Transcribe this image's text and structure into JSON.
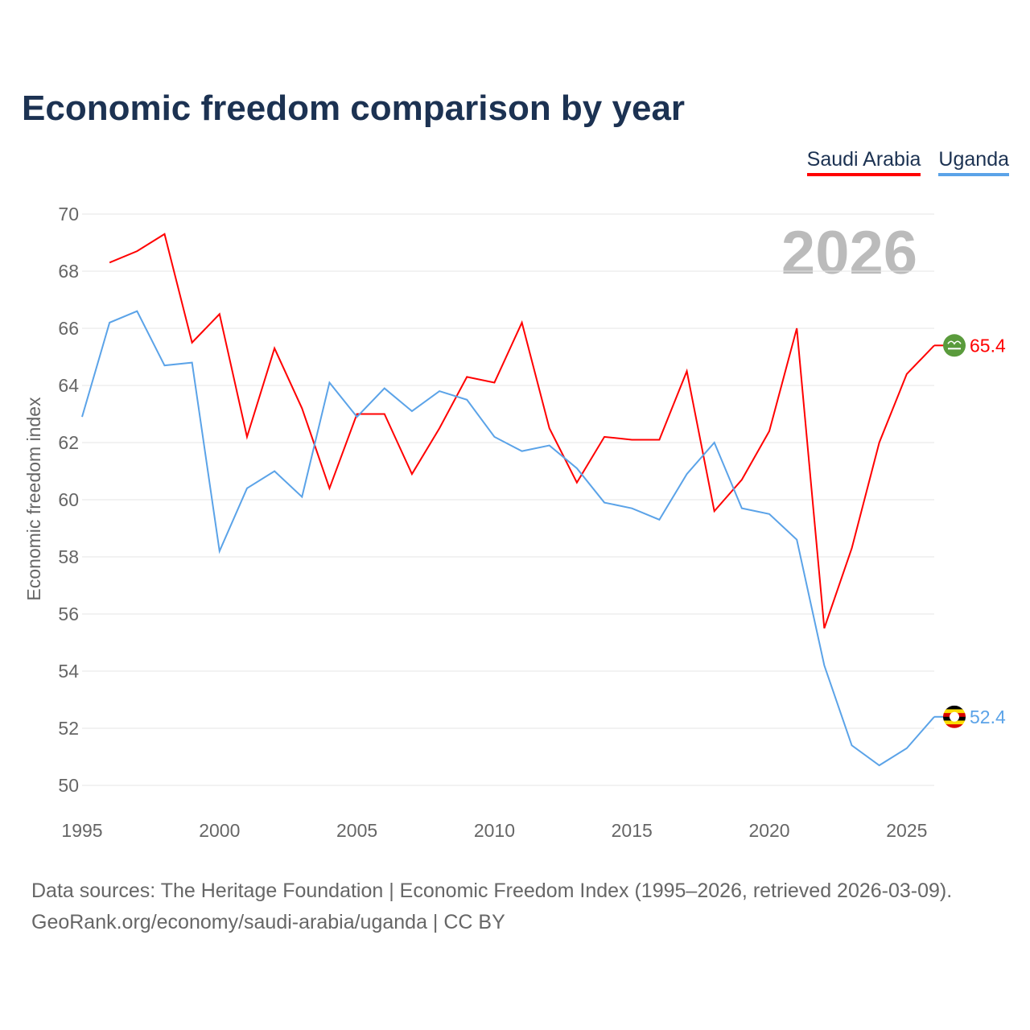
{
  "title": "Economic freedom comparison by year",
  "source_line1": "Data sources: The Heritage Foundation | Economic Freedom Index (1995–2026, retrieved 2026-03-09).",
  "source_line2": "GeoRank.org/economy/saudi-arabia/uganda | CC BY",
  "chart_data": {
    "type": "line",
    "title": "Economic freedom comparison by year",
    "ylabel": "Economic freedom index",
    "xlabel": "",
    "year_watermark": "2026",
    "xlim": [
      1995,
      2026
    ],
    "ylim": [
      50,
      70
    ],
    "xticks": [
      "1995",
      "2000",
      "2005",
      "2010",
      "2015",
      "2020",
      "2025"
    ],
    "yticks": [
      "50",
      "52",
      "54",
      "56",
      "58",
      "60",
      "62",
      "64",
      "66",
      "68",
      "70"
    ],
    "legend_position": "top-right",
    "series": [
      {
        "name": "Saudi Arabia",
        "color": "#ff0000",
        "end_label": "65.4",
        "flag": "saudi-arabia-flag",
        "x": [
          1996,
          1997,
          1998,
          1999,
          2000,
          2001,
          2002,
          2003,
          2004,
          2005,
          2006,
          2007,
          2008,
          2009,
          2010,
          2011,
          2012,
          2013,
          2014,
          2015,
          2016,
          2017,
          2018,
          2019,
          2020,
          2021,
          2022,
          2023,
          2024,
          2025,
          2026
        ],
        "values": [
          68.3,
          68.7,
          69.3,
          65.5,
          66.5,
          62.2,
          65.3,
          63.2,
          60.4,
          63.0,
          63.0,
          60.9,
          62.5,
          64.3,
          64.1,
          66.2,
          62.5,
          60.6,
          62.2,
          62.1,
          62.1,
          64.5,
          59.6,
          60.7,
          62.4,
          66.0,
          55.5,
          58.3,
          62.0,
          64.4,
          65.4
        ]
      },
      {
        "name": "Uganda",
        "color": "#5ba3e8",
        "end_label": "52.4",
        "flag": "uganda-flag",
        "x": [
          1995,
          1996,
          1997,
          1998,
          1999,
          2000,
          2001,
          2002,
          2003,
          2004,
          2005,
          2006,
          2007,
          2008,
          2009,
          2010,
          2011,
          2012,
          2013,
          2014,
          2015,
          2016,
          2017,
          2018,
          2019,
          2020,
          2021,
          2022,
          2023,
          2024,
          2025,
          2026
        ],
        "values": [
          62.9,
          66.2,
          66.6,
          64.7,
          64.8,
          58.2,
          60.4,
          61.0,
          60.1,
          64.1,
          62.9,
          63.9,
          63.1,
          63.8,
          63.5,
          62.2,
          61.7,
          61.9,
          61.1,
          59.9,
          59.7,
          59.3,
          60.9,
          62.0,
          59.7,
          59.5,
          58.6,
          54.2,
          51.4,
          50.7,
          51.3,
          52.4
        ]
      }
    ]
  }
}
